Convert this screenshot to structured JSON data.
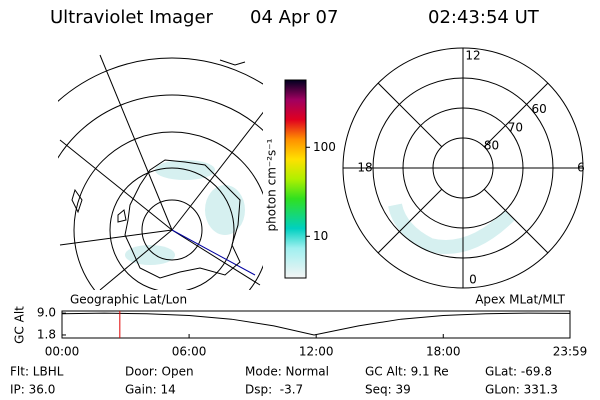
{
  "chart_data": {
    "type": "line",
    "title": "Ultraviolet Imager",
    "date": "04 Apr 07",
    "time": "02:43:54 UT",
    "left_panel_label": "Geographic Lat/Lon",
    "right_panel_label": "Apex MLat/MLT",
    "colorbar": {
      "label": "photon cm⁻²s⁻¹",
      "log": true,
      "lim": [
        3.4,
        570
      ],
      "ticks": [
        10,
        100
      ]
    },
    "polar": {
      "lat_lim": [
        90,
        50
      ],
      "lat_ticks": [
        80,
        70,
        60
      ],
      "mlt_ticks": [
        12,
        18,
        6,
        0
      ]
    },
    "ylabel": "GC Alt",
    "x": [
      0,
      2,
      4,
      6,
      8,
      10,
      11.9,
      14,
      16,
      18,
      20,
      22,
      23.98
    ],
    "values": [
      8.8,
      9.0,
      8.8,
      8.2,
      7.0,
      4.8,
      1.8,
      4.8,
      7.0,
      8.2,
      8.8,
      9.0,
      8.9
    ],
    "color": "#000000",
    "marker_x": 2.73,
    "marker_color": "#e00000",
    "xlim": [
      0,
      23.983
    ],
    "xticks": [
      {
        "value": 0,
        "label": "00:00"
      },
      {
        "value": 6,
        "label": "06:00"
      },
      {
        "value": 12,
        "label": "12:00"
      },
      {
        "value": 18,
        "label": "18:00"
      },
      {
        "value": 23.983,
        "label": "23:59"
      }
    ],
    "ylim": [
      0.8,
      9.7
    ],
    "yticks": [
      {
        "value": 9.0,
        "label": "9.0"
      },
      {
        "value": 1.8,
        "label": "1.8"
      }
    ],
    "info": [
      [
        "Flt: LBHL",
        "Door: Open",
        "Mode: Normal",
        "GC Alt: 9.1 Re",
        "GLat: -69.8"
      ],
      [
        "IP: 36.0",
        "Gain: 14",
        "Dsp:  -3.7",
        "Seq: 39",
        "GLon: 331.3"
      ]
    ]
  }
}
